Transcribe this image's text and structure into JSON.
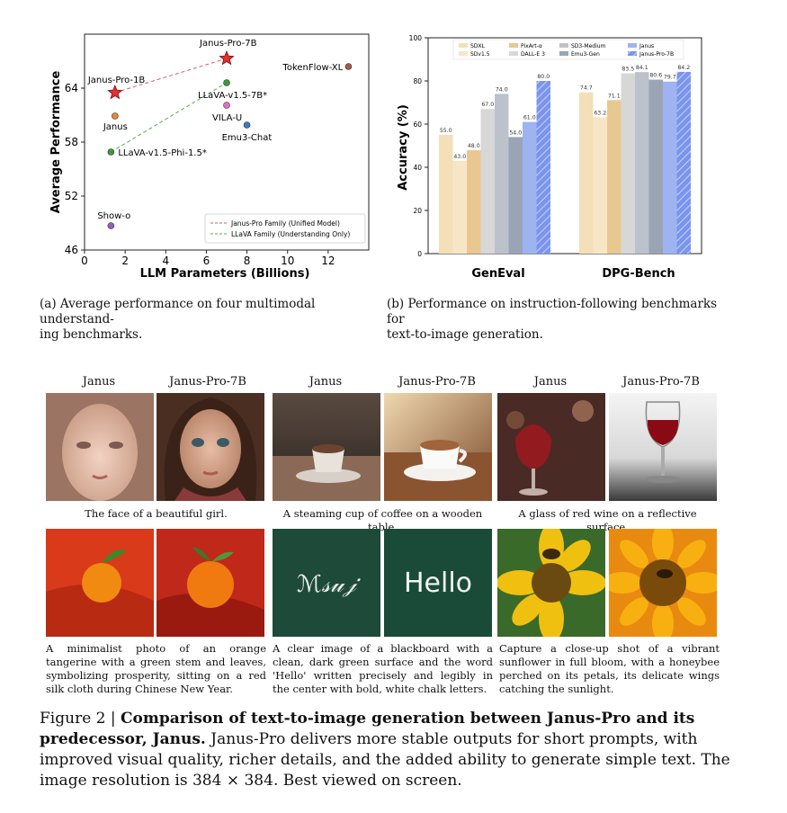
{
  "chart_data": [
    {
      "type": "scatter",
      "xlabel": "LLM Parameters (Billions)",
      "ylabel": "Average Performance",
      "xlim": [
        0,
        14
      ],
      "ylim": [
        46,
        70
      ],
      "xticks": [
        "0",
        "2",
        "4",
        "6",
        "8",
        "10",
        "12"
      ],
      "yticks": [
        "46",
        "52",
        "58",
        "64"
      ],
      "points": [
        {
          "label": "Janus-Pro-7B",
          "x": 7.0,
          "y": 67.3,
          "color": "#e03030",
          "marker": "star"
        },
        {
          "label": "Janus-Pro-1B",
          "x": 1.5,
          "y": 63.5,
          "color": "#e03030",
          "marker": "star"
        },
        {
          "label": "TokenFlow-XL",
          "x": 13.0,
          "y": 66.4,
          "color": "#a05a4a",
          "marker": "circle"
        },
        {
          "label": "LLaVA-v1.5-7B*",
          "x": 7.0,
          "y": 64.6,
          "color": "#3a9a3a",
          "marker": "circle"
        },
        {
          "label": "VILA-U",
          "x": 7.0,
          "y": 62.1,
          "color": "#e070c0",
          "marker": "circle"
        },
        {
          "label": "Janus",
          "x": 1.5,
          "y": 60.9,
          "color": "#e68a2e",
          "marker": "circle"
        },
        {
          "label": "Emu3-Chat",
          "x": 8.0,
          "y": 59.9,
          "color": "#3a7ac0",
          "marker": "circle"
        },
        {
          "label": "LLaVA-v1.5-Phi-1.5*",
          "x": 1.3,
          "y": 56.9,
          "color": "#3a9a3a",
          "marker": "circle"
        },
        {
          "label": "Show-o",
          "x": 1.3,
          "y": 48.7,
          "color": "#9a5ac0",
          "marker": "circle"
        }
      ],
      "legend": [
        {
          "label": "Janus-Pro Family (Unified Model)",
          "color": "#e05a5a"
        },
        {
          "label": "LLaVA Family (Understanding Only)",
          "color": "#4ab04a"
        }
      ],
      "legend_position": "bottom-right",
      "caption": "(a)  Average performance on four multimodal understanding benchmarks."
    },
    {
      "type": "bar",
      "ylabel": "Accuracy (%)",
      "ylim": [
        0,
        100
      ],
      "yticks": [
        "0",
        "20",
        "40",
        "60",
        "80",
        "100"
      ],
      "categories": [
        "GenEval",
        "DPG-Bench"
      ],
      "series": [
        {
          "name": "SDXL",
          "color": "#f3dfb8",
          "values": [
            55.0,
            74.7
          ]
        },
        {
          "name": "SDv1.5",
          "color": "#f7e6c6",
          "values": [
            43.0,
            63.2
          ]
        },
        {
          "name": "PixArt-α",
          "color": "#e8c890",
          "values": [
            48.0,
            71.1
          ]
        },
        {
          "name": "DALL-E 3",
          "color": "#d7d7d7",
          "values": [
            67.0,
            83.5
          ]
        },
        {
          "name": "SD3-Medium",
          "color": "#bcc2cc",
          "values": [
            74.0,
            84.1
          ]
        },
        {
          "name": "Emu3-Gen",
          "color": "#9aa4b4",
          "values": [
            54.0,
            80.6
          ]
        },
        {
          "name": "Janus",
          "color": "#9db4f0",
          "values": [
            61.0,
            79.7
          ]
        },
        {
          "name": "Janus-Pro-7B",
          "color": "#7b94ee",
          "values": [
            80.0,
            84.2
          ],
          "hatch": true
        }
      ],
      "value_labels": [
        [
          "55.0",
          "43.0",
          "48.0",
          "67.0",
          "74.0",
          "54.0",
          "61.0",
          "80.0"
        ],
        [
          "74.7",
          "63.2",
          "71.1",
          "83.5",
          "84.1",
          "80.6",
          "79.7",
          "84.2"
        ]
      ],
      "legend_position": "top-center",
      "caption": "(b)  Performance on instruction-following benchmarks for text-to-image generation."
    }
  ],
  "captions": {
    "a_line1": "(a)  Average performance on four multimodal understand-",
    "a_line2": "ing benchmarks.",
    "b_line1": "(b)  Performance on instruction-following benchmarks for",
    "b_line2": "text-to-image generation."
  },
  "gallery": {
    "column_headers": [
      "Janus",
      "Janus-Pro-7B",
      "Janus",
      "Janus-Pro-7B",
      "Janus",
      "Janus-Pro-7B"
    ],
    "row1_prompts": [
      "The face of a beautiful girl.",
      "A steaming cup of coffee on a wooden table.",
      "A glass of red wine on a reflective surface."
    ],
    "row2_prompts": [
      "A minimalist photo of an orange tangerine with a green stem and leaves, symbolizing prosperity, sitting on a red silk cloth during Chinese New Year.",
      "A clear image of a blackboard with a clean, dark green surface and the word 'Hello' written precisely and legibly in the center with bold, white chalk letters.",
      "Capture a close-up shot of a vibrant sunflower in full bloom, with a honeybee perched on its petals, its delicate wings catching the sunlight."
    ],
    "chalk_janus": "ℳ𝓈𝓊𝒿",
    "chalk_pro": "Hello"
  },
  "figure": {
    "label": "Figure 2 | ",
    "title": "Comparison of text-to-image generation between Janus-Pro and its predecessor, Janus.",
    "body": " Janus-Pro delivers more stable outputs for short prompts, with improved visual quality, richer details, and the added ability to generate simple text. The image resolution is 384 × 384. Best viewed on screen."
  }
}
